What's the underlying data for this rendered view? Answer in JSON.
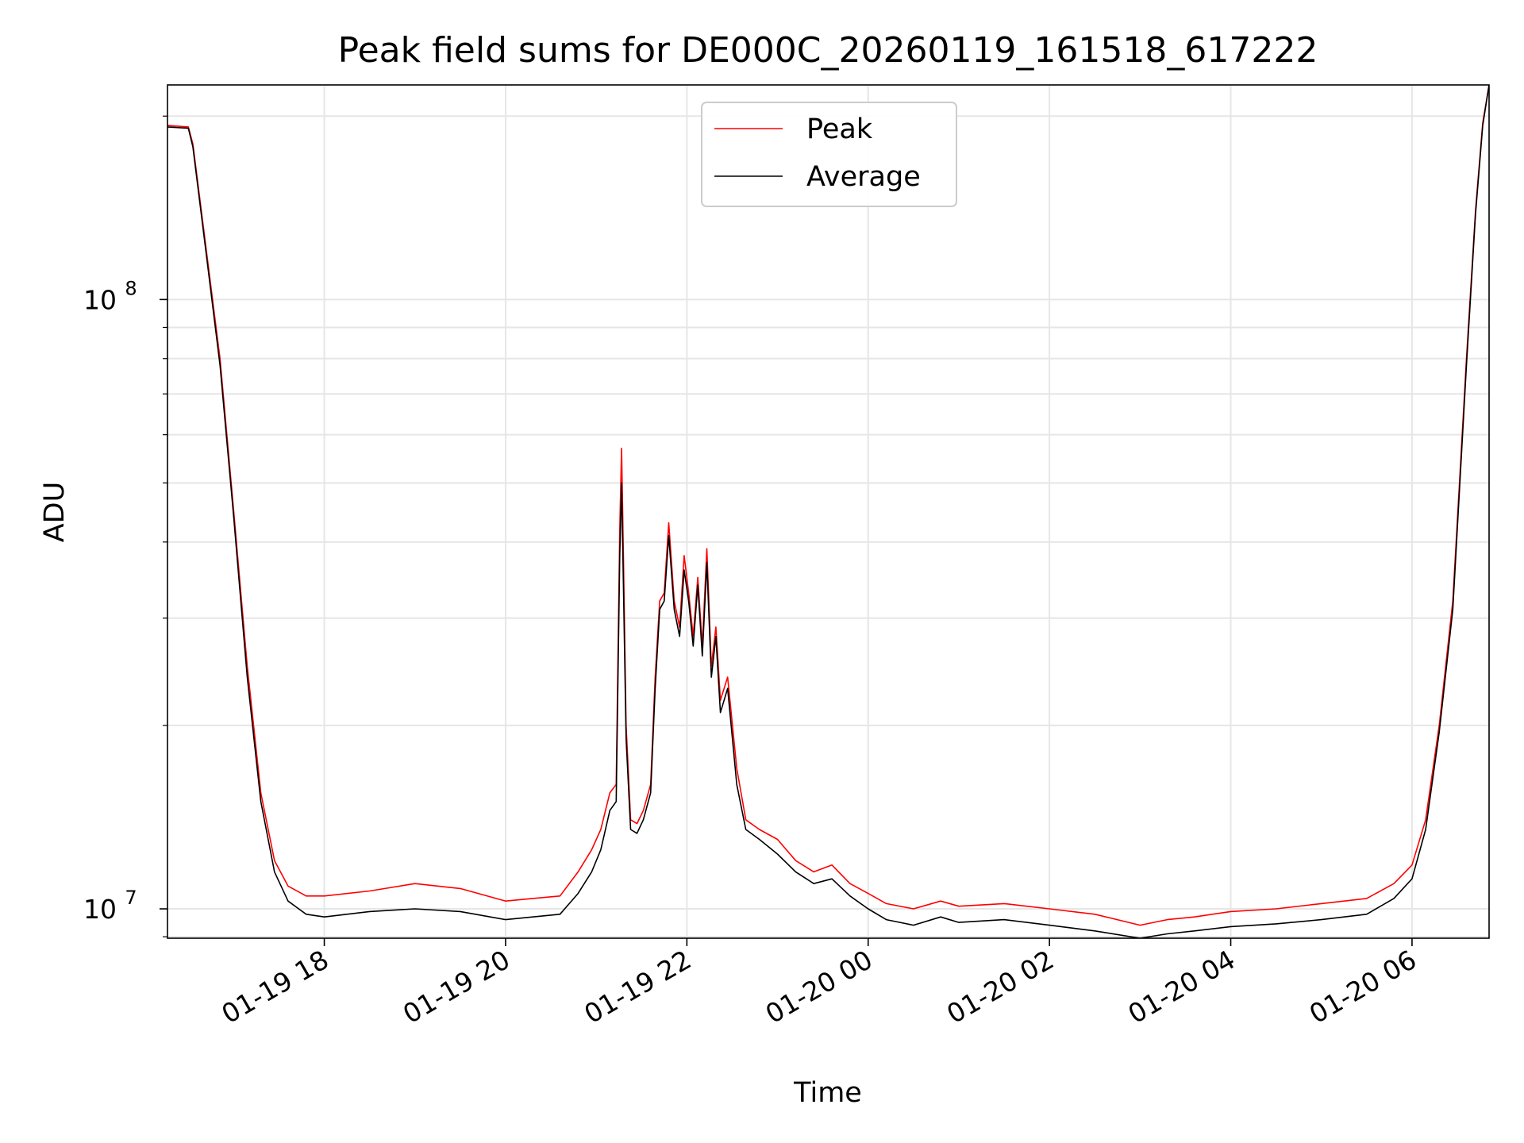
{
  "chart_data": {
    "type": "line",
    "title": "Peak field sums for DE000C_20260119_161518_617222",
    "xlabel": "Time",
    "ylabel": "ADU",
    "yscale": "log",
    "ylim": [
      8950000,
      225000000
    ],
    "xlim_hours": [
      16.27,
      30.85
    ],
    "grid": true,
    "legend_position": "upper center",
    "x_ticks": [
      {
        "hour": 18,
        "label": "01-19 18"
      },
      {
        "hour": 20,
        "label": "01-19 20"
      },
      {
        "hour": 22,
        "label": "01-19 22"
      },
      {
        "hour": 24,
        "label": "01-20 00"
      },
      {
        "hour": 26,
        "label": "01-20 02"
      },
      {
        "hour": 28,
        "label": "01-20 04"
      },
      {
        "hour": 30,
        "label": "01-20 06"
      }
    ],
    "y_major_ticks": [
      {
        "value": 10000000,
        "base": "10",
        "exp": "7"
      },
      {
        "value": 100000000,
        "base": "10",
        "exp": "8"
      }
    ],
    "series": [
      {
        "name": "Peak",
        "color": "#ff0000",
        "points": [
          [
            16.27,
            193000000
          ],
          [
            16.5,
            192000000
          ],
          [
            16.55,
            180000000
          ],
          [
            16.7,
            120000000
          ],
          [
            16.85,
            80000000
          ],
          [
            17.0,
            45000000
          ],
          [
            17.15,
            25000000
          ],
          [
            17.3,
            15500000
          ],
          [
            17.45,
            12000000
          ],
          [
            17.6,
            10900000
          ],
          [
            17.8,
            10500000
          ],
          [
            18.0,
            10500000
          ],
          [
            18.5,
            10700000
          ],
          [
            19.0,
            11000000
          ],
          [
            19.5,
            10800000
          ],
          [
            20.0,
            10300000
          ],
          [
            20.3,
            10400000
          ],
          [
            20.6,
            10500000
          ],
          [
            20.8,
            11500000
          ],
          [
            20.95,
            12500000
          ],
          [
            21.05,
            13500000
          ],
          [
            21.15,
            15500000
          ],
          [
            21.22,
            16000000
          ],
          [
            21.26,
            42000000
          ],
          [
            21.28,
            57000000
          ],
          [
            21.3,
            38000000
          ],
          [
            21.33,
            20000000
          ],
          [
            21.38,
            14000000
          ],
          [
            21.45,
            13800000
          ],
          [
            21.52,
            14500000
          ],
          [
            21.6,
            16000000
          ],
          [
            21.65,
            24000000
          ],
          [
            21.7,
            32000000
          ],
          [
            21.75,
            33000000
          ],
          [
            21.8,
            43000000
          ],
          [
            21.86,
            32000000
          ],
          [
            21.92,
            29000000
          ],
          [
            21.97,
            38000000
          ],
          [
            22.02,
            33000000
          ],
          [
            22.07,
            28000000
          ],
          [
            22.12,
            35000000
          ],
          [
            22.17,
            27000000
          ],
          [
            22.22,
            39000000
          ],
          [
            22.27,
            25000000
          ],
          [
            22.32,
            29000000
          ],
          [
            22.37,
            22000000
          ],
          [
            22.45,
            24000000
          ],
          [
            22.55,
            17000000
          ],
          [
            22.65,
            14000000
          ],
          [
            22.8,
            13500000
          ],
          [
            23.0,
            13000000
          ],
          [
            23.2,
            12000000
          ],
          [
            23.4,
            11500000
          ],
          [
            23.6,
            11800000
          ],
          [
            23.8,
            11000000
          ],
          [
            24.0,
            10600000
          ],
          [
            24.2,
            10200000
          ],
          [
            24.5,
            10000000
          ],
          [
            24.8,
            10300000
          ],
          [
            25.0,
            10100000
          ],
          [
            25.5,
            10200000
          ],
          [
            26.0,
            10000000
          ],
          [
            26.5,
            9800000
          ],
          [
            27.0,
            9400000
          ],
          [
            27.3,
            9600000
          ],
          [
            27.6,
            9700000
          ],
          [
            28.0,
            9900000
          ],
          [
            28.5,
            10000000
          ],
          [
            29.0,
            10200000
          ],
          [
            29.5,
            10400000
          ],
          [
            29.8,
            11000000
          ],
          [
            30.0,
            11800000
          ],
          [
            30.15,
            14000000
          ],
          [
            30.3,
            20000000
          ],
          [
            30.45,
            32000000
          ],
          [
            30.6,
            80000000
          ],
          [
            30.7,
            140000000
          ],
          [
            30.78,
            195000000
          ],
          [
            30.85,
            225000000
          ]
        ]
      },
      {
        "name": "Average",
        "color": "#000000",
        "points": [
          [
            16.27,
            192000000
          ],
          [
            16.5,
            191000000
          ],
          [
            16.55,
            178000000
          ],
          [
            16.7,
            118000000
          ],
          [
            16.85,
            78000000
          ],
          [
            17.0,
            44000000
          ],
          [
            17.15,
            24000000
          ],
          [
            17.3,
            15000000
          ],
          [
            17.45,
            11500000
          ],
          [
            17.6,
            10300000
          ],
          [
            17.8,
            9800000
          ],
          [
            18.0,
            9700000
          ],
          [
            18.5,
            9900000
          ],
          [
            19.0,
            10000000
          ],
          [
            19.5,
            9900000
          ],
          [
            20.0,
            9600000
          ],
          [
            20.3,
            9700000
          ],
          [
            20.6,
            9800000
          ],
          [
            20.8,
            10600000
          ],
          [
            20.95,
            11500000
          ],
          [
            21.05,
            12500000
          ],
          [
            21.15,
            14500000
          ],
          [
            21.22,
            15000000
          ],
          [
            21.26,
            38000000
          ],
          [
            21.28,
            50000000
          ],
          [
            21.3,
            34000000
          ],
          [
            21.33,
            19000000
          ],
          [
            21.38,
            13500000
          ],
          [
            21.45,
            13300000
          ],
          [
            21.52,
            14000000
          ],
          [
            21.6,
            15500000
          ],
          [
            21.65,
            23000000
          ],
          [
            21.7,
            31000000
          ],
          [
            21.75,
            32000000
          ],
          [
            21.8,
            41000000
          ],
          [
            21.86,
            31000000
          ],
          [
            21.92,
            28000000
          ],
          [
            21.97,
            36000000
          ],
          [
            22.02,
            32000000
          ],
          [
            22.07,
            27000000
          ],
          [
            22.12,
            34000000
          ],
          [
            22.17,
            26000000
          ],
          [
            22.22,
            37000000
          ],
          [
            22.27,
            24000000
          ],
          [
            22.32,
            28000000
          ],
          [
            22.37,
            21000000
          ],
          [
            22.45,
            23000000
          ],
          [
            22.55,
            16000000
          ],
          [
            22.65,
            13500000
          ],
          [
            22.8,
            13000000
          ],
          [
            23.0,
            12300000
          ],
          [
            23.2,
            11500000
          ],
          [
            23.4,
            11000000
          ],
          [
            23.6,
            11200000
          ],
          [
            23.8,
            10500000
          ],
          [
            24.0,
            10000000
          ],
          [
            24.2,
            9600000
          ],
          [
            24.5,
            9400000
          ],
          [
            24.8,
            9700000
          ],
          [
            25.0,
            9500000
          ],
          [
            25.5,
            9600000
          ],
          [
            26.0,
            9400000
          ],
          [
            26.5,
            9200000
          ],
          [
            27.0,
            8950000
          ],
          [
            27.3,
            9100000
          ],
          [
            27.6,
            9200000
          ],
          [
            28.0,
            9350000
          ],
          [
            28.5,
            9450000
          ],
          [
            29.0,
            9600000
          ],
          [
            29.5,
            9800000
          ],
          [
            29.8,
            10400000
          ],
          [
            30.0,
            11200000
          ],
          [
            30.15,
            13500000
          ],
          [
            30.3,
            19500000
          ],
          [
            30.45,
            31000000
          ],
          [
            30.6,
            78000000
          ],
          [
            30.7,
            138000000
          ],
          [
            30.78,
            193000000
          ],
          [
            30.85,
            225000000
          ]
        ]
      }
    ]
  }
}
